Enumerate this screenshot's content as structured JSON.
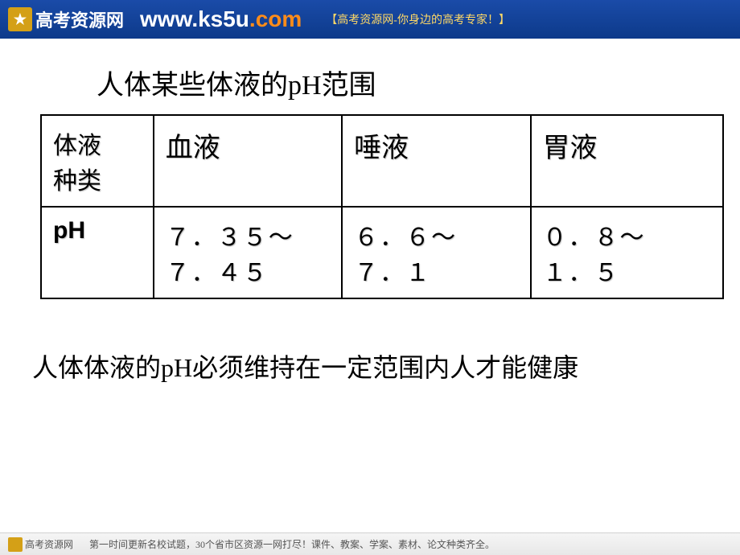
{
  "banner": {
    "logo_text": "高考资源网",
    "url_main": "www.ks5u",
    "url_suffix": ".com",
    "tagline": "【高考资源网-你身边的高考专家！】"
  },
  "content": {
    "title": "人体某些体液的pH范围",
    "table": {
      "headers": {
        "col1_line1": "体液",
        "col1_line2": "种类",
        "col2": "血液",
        "col3": "唾液",
        "col4": "胃液"
      },
      "row_label": "pH",
      "values": {
        "blood_line1": "７．３５～",
        "blood_line2": "７．４５",
        "saliva_line1": "６．６～",
        "saliva_line2": "７．１",
        "gastric_line1": "０．８～",
        "gastric_line2": "１．５"
      }
    },
    "bottom_text": "人体体液的pH必须维持在一定范围内人才能健康"
  },
  "footer": {
    "logo_text": "高考资源网",
    "text": "第一时间更新名校试题，30个省市区资源一网打尽！课件、教案、学案、素材、论文种类齐全。"
  },
  "styling": {
    "banner_bg_start": "#1a4ba8",
    "banner_bg_end": "#0d3a8a",
    "url_suffix_color": "#ff8c1a",
    "tagline_color": "#ffd966",
    "text_color": "#000000",
    "table_border": "#000000",
    "title_fontsize": 34,
    "table_header_fontsize": 34,
    "table_value_fontsize": 30,
    "bottom_text_fontsize": 32
  }
}
